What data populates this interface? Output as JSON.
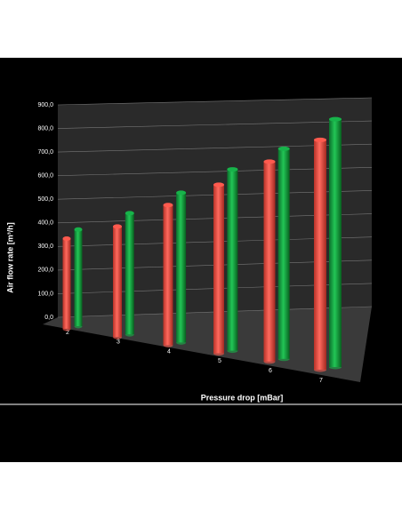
{
  "chart_data": {
    "type": "bar3d",
    "x_label": "Pressure drop [mBar]",
    "y_label": "Air flow rate [m³/h]",
    "categories": [
      "2",
      "3",
      "4",
      "5",
      "6",
      "7"
    ],
    "series": [
      {
        "color": "#ff5a4e",
        "values": [
          350,
          415,
          510,
          595,
          685,
          765
        ]
      },
      {
        "color": "#17b34a",
        "values": [
          375,
          455,
          545,
          640,
          720,
          825
        ]
      }
    ],
    "ylim": [
      0,
      900
    ],
    "yticks": [
      {
        "value": 0,
        "label": "0,0"
      },
      {
        "value": 100,
        "label": "100,0"
      },
      {
        "value": 200,
        "label": "200,0"
      },
      {
        "value": 300,
        "label": "300,0"
      },
      {
        "value": 400,
        "label": "400,0"
      },
      {
        "value": 500,
        "label": "500,0"
      },
      {
        "value": 600,
        "label": "600,0"
      },
      {
        "value": 700,
        "label": "700,0"
      },
      {
        "value": 800,
        "label": "800,0"
      },
      {
        "value": 900,
        "label": "900,0"
      }
    ],
    "grid": true
  }
}
